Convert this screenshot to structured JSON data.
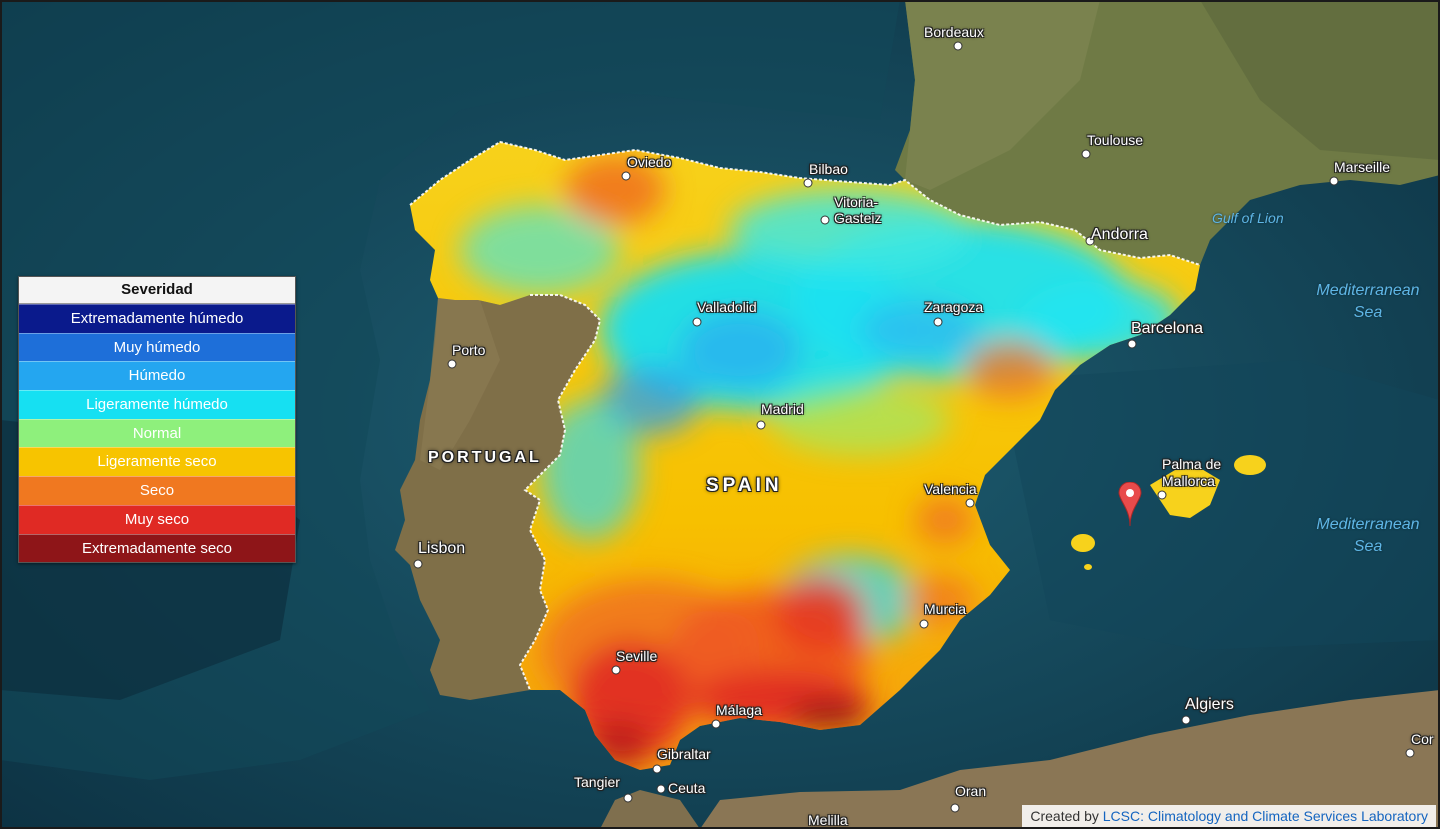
{
  "legend": {
    "title": "Severidad",
    "items": [
      {
        "label": "Extremadamente húmedo",
        "color": "#0a1a8c"
      },
      {
        "label": "Muy húmedo",
        "color": "#1e6fd9"
      },
      {
        "label": "Húmedo",
        "color": "#24a6f0"
      },
      {
        "label": "Ligeramente húmedo",
        "color": "#16e0f2"
      },
      {
        "label": "Normal",
        "color": "#8ef07c"
      },
      {
        "label": "Ligeramente seco",
        "color": "#f7c400"
      },
      {
        "label": "Seco",
        "color": "#f07820"
      },
      {
        "label": "Muy seco",
        "color": "#e02a24"
      },
      {
        "label": "Extremadamente seco",
        "color": "#8e1518"
      }
    ]
  },
  "countries": {
    "spain": "SPAIN",
    "portugal": "PORTUGAL"
  },
  "seas": {
    "gulf": "Gulf of Lion",
    "med1": "Mediterranean Sea",
    "med2": "Mediterranean Sea"
  },
  "cities": {
    "bordeaux": "Bordeaux",
    "toulouse": "Toulouse",
    "marseille": "Marseille",
    "andorra": "Andorra",
    "oviedo": "Oviedo",
    "bilbao": "Bilbao",
    "vitoria": "Vitoria-Gasteiz",
    "valladolid": "Valladolid",
    "zaragoza": "Zaragoza",
    "barcelona": "Barcelona",
    "porto": "Porto",
    "madrid": "Madrid",
    "lisbon": "Lisbon",
    "valencia": "Valencia",
    "palma": "Palma de Mallorca",
    "murcia": "Murcia",
    "seville": "Seville",
    "malaga": "Málaga",
    "gibraltar": "Gibraltar",
    "tangier": "Tangier",
    "ceuta": "Ceuta",
    "algiers": "Algiers",
    "oran": "Oran",
    "melilla": "Melilla",
    "cor": "Cor"
  },
  "attribution": {
    "prefix": "Created by ",
    "link": "LCSC: Climatology and Climate Services Laboratory"
  }
}
